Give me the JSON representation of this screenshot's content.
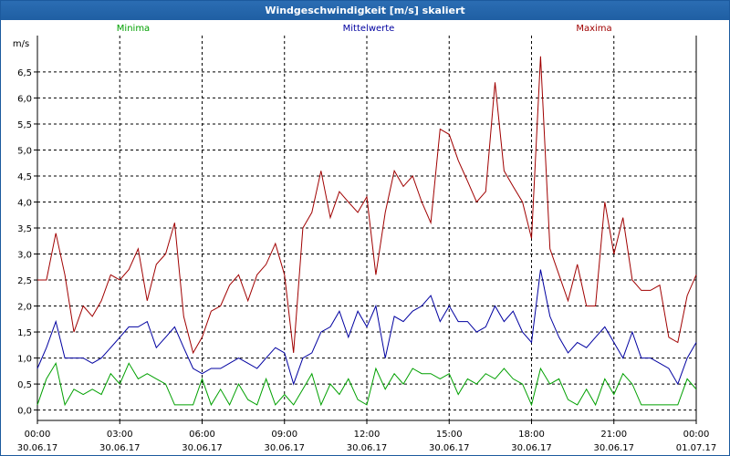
{
  "window": {
    "title": "Windgeschwindigkeit [m/s] skaliert"
  },
  "chart_data": {
    "type": "line",
    "ylabel": "m/s",
    "ylim": [
      -0.2,
      7.2
    ],
    "yticks": [
      0.0,
      0.5,
      1.0,
      1.5,
      2.0,
      2.5,
      3.0,
      3.5,
      4.0,
      4.5,
      5.0,
      5.5,
      6.0,
      6.5
    ],
    "ytick_labels": [
      "0,0",
      "0,5",
      "1,0",
      "1,5",
      "2,0",
      "2,5",
      "3,0",
      "3,5",
      "4,0",
      "4,5",
      "5,0",
      "5,5",
      "6,0",
      "6,5"
    ],
    "xlim": [
      0,
      24
    ],
    "xticks": [
      0,
      3,
      6,
      9,
      12,
      15,
      18,
      21,
      24
    ],
    "xtick_times": [
      "00:00",
      "03:00",
      "06:00",
      "09:00",
      "12:00",
      "15:00",
      "18:00",
      "21:00",
      "00:00"
    ],
    "xtick_dates": [
      "30.06.17",
      "30.06.17",
      "30.06.17",
      "30.06.17",
      "30.06.17",
      "30.06.17",
      "30.06.17",
      "30.06.17",
      "01.07.17"
    ],
    "grid": true,
    "legend_position": "top",
    "series": [
      {
        "name": "Minima",
        "color": "#00a000",
        "x": [
          0,
          0.33,
          0.67,
          1,
          1.33,
          1.67,
          2,
          2.33,
          2.67,
          3,
          3.33,
          3.67,
          4,
          4.33,
          4.67,
          5,
          5.33,
          5.67,
          6,
          6.33,
          6.67,
          7,
          7.33,
          7.67,
          8,
          8.33,
          8.67,
          9,
          9.33,
          9.67,
          10,
          10.33,
          10.67,
          11,
          11.33,
          11.67,
          12,
          12.33,
          12.67,
          13,
          13.33,
          13.67,
          14,
          14.33,
          14.67,
          15,
          15.33,
          15.67,
          16,
          16.33,
          16.67,
          17,
          17.33,
          17.67,
          18,
          18.33,
          18.67,
          19,
          19.33,
          19.67,
          20,
          20.33,
          20.67,
          21,
          21.33,
          21.67,
          22,
          22.33,
          22.67,
          23,
          23.33,
          23.67,
          24
        ],
        "values": [
          0.1,
          0.6,
          0.9,
          0.1,
          0.4,
          0.3,
          0.4,
          0.3,
          0.7,
          0.5,
          0.9,
          0.6,
          0.7,
          0.6,
          0.5,
          0.1,
          0.1,
          0.1,
          0.6,
          0.1,
          0.4,
          0.1,
          0.5,
          0.2,
          0.1,
          0.6,
          0.1,
          0.3,
          0.1,
          0.4,
          0.7,
          0.1,
          0.5,
          0.3,
          0.6,
          0.2,
          0.1,
          0.8,
          0.4,
          0.7,
          0.5,
          0.8,
          0.7,
          0.7,
          0.6,
          0.7,
          0.3,
          0.6,
          0.5,
          0.7,
          0.6,
          0.8,
          0.6,
          0.5,
          0.1,
          0.8,
          0.5,
          0.6,
          0.2,
          0.1,
          0.4,
          0.1,
          0.6,
          0.3,
          0.7,
          0.5,
          0.1,
          0.1,
          0.1,
          0.1,
          0.1,
          0.6,
          0.4
        ]
      },
      {
        "name": "Mittelwerte",
        "color": "#0000a0",
        "x": [
          0,
          0.33,
          0.67,
          1,
          1.33,
          1.67,
          2,
          2.33,
          2.67,
          3,
          3.33,
          3.67,
          4,
          4.33,
          4.67,
          5,
          5.33,
          5.67,
          6,
          6.33,
          6.67,
          7,
          7.33,
          7.67,
          8,
          8.33,
          8.67,
          9,
          9.33,
          9.67,
          10,
          10.33,
          10.67,
          11,
          11.33,
          11.67,
          12,
          12.33,
          12.67,
          13,
          13.33,
          13.67,
          14,
          14.33,
          14.67,
          15,
          15.33,
          15.67,
          16,
          16.33,
          16.67,
          17,
          17.33,
          17.67,
          18,
          18.33,
          18.67,
          19,
          19.33,
          19.67,
          20,
          20.33,
          20.67,
          21,
          21.33,
          21.67,
          22,
          22.33,
          22.67,
          23,
          23.33,
          23.67,
          24
        ],
        "values": [
          0.8,
          1.2,
          1.7,
          1.0,
          1.0,
          1.0,
          0.9,
          1.0,
          1.2,
          1.4,
          1.6,
          1.6,
          1.7,
          1.2,
          1.4,
          1.6,
          1.2,
          0.8,
          0.7,
          0.8,
          0.8,
          0.9,
          1.0,
          0.9,
          0.8,
          1.0,
          1.2,
          1.1,
          0.5,
          1.0,
          1.1,
          1.5,
          1.6,
          1.9,
          1.4,
          1.9,
          1.6,
          2.0,
          1.0,
          1.8,
          1.7,
          1.9,
          2.0,
          2.2,
          1.7,
          2.0,
          1.7,
          1.7,
          1.5,
          1.6,
          2.0,
          1.7,
          1.9,
          1.5,
          1.3,
          2.7,
          1.8,
          1.4,
          1.1,
          1.3,
          1.2,
          1.4,
          1.6,
          1.3,
          1.0,
          1.5,
          1.0,
          1.0,
          0.9,
          0.8,
          0.5,
          1.0,
          1.3
        ]
      },
      {
        "name": "Maxima",
        "color": "#a00000",
        "x": [
          0,
          0.33,
          0.67,
          1,
          1.33,
          1.67,
          2,
          2.33,
          2.67,
          3,
          3.33,
          3.67,
          4,
          4.33,
          4.67,
          5,
          5.33,
          5.67,
          6,
          6.33,
          6.67,
          7,
          7.33,
          7.67,
          8,
          8.33,
          8.67,
          9,
          9.33,
          9.67,
          10,
          10.33,
          10.67,
          11,
          11.33,
          11.67,
          12,
          12.33,
          12.67,
          13,
          13.33,
          13.67,
          14,
          14.33,
          14.67,
          15,
          15.33,
          15.67,
          16,
          16.33,
          16.67,
          17,
          17.33,
          17.67,
          18,
          18.33,
          18.67,
          19,
          19.33,
          19.67,
          20,
          20.33,
          20.67,
          21,
          21.33,
          21.67,
          22,
          22.33,
          22.67,
          23,
          23.33,
          23.67,
          24
        ],
        "values": [
          2.5,
          2.5,
          3.4,
          2.6,
          1.5,
          2.0,
          1.8,
          2.1,
          2.6,
          2.5,
          2.7,
          3.1,
          2.1,
          2.8,
          3.0,
          3.6,
          1.8,
          1.1,
          1.4,
          1.9,
          2.0,
          2.4,
          2.6,
          2.1,
          2.6,
          2.8,
          3.2,
          2.6,
          1.1,
          3.5,
          3.8,
          4.6,
          3.7,
          4.2,
          4.0,
          3.8,
          4.1,
          2.6,
          3.8,
          4.6,
          4.3,
          4.5,
          4.0,
          3.6,
          5.4,
          5.3,
          4.8,
          4.4,
          4.0,
          4.2,
          6.3,
          4.6,
          4.3,
          4.0,
          3.3,
          6.8,
          3.1,
          2.6,
          2.1,
          2.8,
          2.0,
          2.0,
          4.0,
          3.0,
          3.7,
          2.5,
          2.3,
          2.3,
          2.4,
          1.4,
          1.3,
          2.2,
          2.6
        ]
      }
    ]
  }
}
